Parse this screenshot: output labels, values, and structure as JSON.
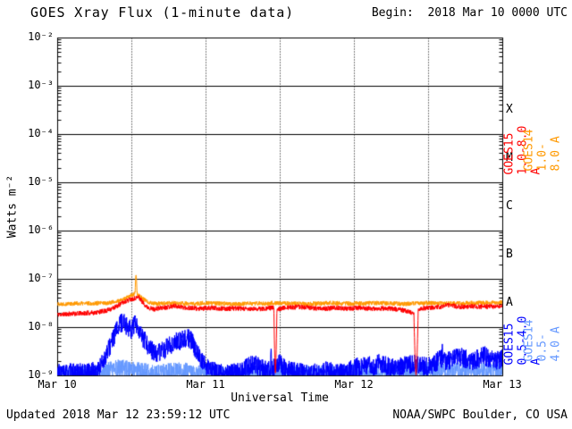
{
  "header": {
    "title": "GOES Xray Flux (1-minute data)",
    "begin": "Begin:  2018 Mar 10 0000 UTC"
  },
  "footer": {
    "updated": "Updated 2018 Mar 12 23:59:12 UTC",
    "credit": "NOAA/SWPC Boulder, CO USA"
  },
  "chart_data": {
    "type": "line",
    "title": "GOES Xray Flux (1-minute data)",
    "xlabel": "Universal Time",
    "ylabel": "Watts m⁻²",
    "x_range_hours": [
      0,
      72
    ],
    "ylim": [
      1e-09,
      0.01
    ],
    "y_scale": "log",
    "grid": {
      "h_lines_log": [
        -2,
        -3,
        -4,
        -5,
        -6,
        -7,
        -8,
        -9
      ],
      "v_dotted_hours": [
        12,
        24,
        36,
        48,
        60
      ]
    },
    "x_ticks": [
      {
        "label": "Mar 10",
        "hour": 0
      },
      {
        "label": "Mar 11",
        "hour": 24
      },
      {
        "label": "Mar 12",
        "hour": 48
      },
      {
        "label": "Mar 13",
        "hour": 72
      }
    ],
    "y_ticks": [
      {
        "label": "10⁻²",
        "log": -2
      },
      {
        "label": "10⁻³",
        "log": -3
      },
      {
        "label": "10⁻⁴",
        "log": -4
      },
      {
        "label": "10⁻⁵",
        "log": -5
      },
      {
        "label": "10⁻⁶",
        "log": -6
      },
      {
        "label": "10⁻⁷",
        "log": -7
      },
      {
        "label": "10⁻⁸",
        "log": -8
      },
      {
        "label": "10⁻⁹",
        "log": -9
      }
    ],
    "flare_classes": [
      {
        "label": "X",
        "log": -3.5
      },
      {
        "label": "M",
        "log": -4.5
      },
      {
        "label": "C",
        "log": -5.5
      },
      {
        "label": "B",
        "log": -6.5
      },
      {
        "label": "A",
        "log": -7.5
      }
    ],
    "legends": [
      {
        "text": "GOES15 1.0-8.0 A",
        "color": "#ff0000",
        "col": 0,
        "row": "top"
      },
      {
        "text": "GOES14 1.0-8.0 A",
        "color": "#ff9900",
        "col": 1,
        "row": "top"
      },
      {
        "text": "GOES15 0.5-4.0 A",
        "color": "#0000ff",
        "col": 0,
        "row": "bottom"
      },
      {
        "text": "GOES14 0.5-4.0 A",
        "color": "#6699ff",
        "col": 1,
        "row": "bottom"
      }
    ],
    "series": [
      {
        "name": "GOES14 0.5-4.0 A",
        "color": "#6699ff",
        "seed": 44,
        "noise_log": 0.18,
        "trend": [
          [
            0,
            -8.98
          ],
          [
            6,
            -8.98
          ],
          [
            8,
            -8.92
          ],
          [
            10,
            -8.84
          ],
          [
            12,
            -8.88
          ],
          [
            14,
            -8.92
          ],
          [
            16,
            -8.96
          ],
          [
            18,
            -8.92
          ],
          [
            20,
            -8.9
          ],
          [
            22,
            -8.94
          ],
          [
            24,
            -8.98
          ],
          [
            30,
            -8.98
          ],
          [
            36,
            -8.95
          ],
          [
            42,
            -8.97
          ],
          [
            48,
            -8.93
          ],
          [
            54,
            -8.95
          ],
          [
            60,
            -8.9
          ],
          [
            64,
            -8.88
          ],
          [
            68,
            -8.9
          ],
          [
            72,
            -8.88
          ]
        ]
      },
      {
        "name": "GOES15 0.5-4.0 A",
        "color": "#0000ff",
        "seed": 33,
        "noise_log": 0.2,
        "trend": [
          [
            0,
            -8.95
          ],
          [
            5,
            -8.95
          ],
          [
            6.5,
            -8.9
          ],
          [
            7.5,
            -8.7
          ],
          [
            8.5,
            -8.4
          ],
          [
            9.5,
            -8.1
          ],
          [
            10.3,
            -7.92
          ],
          [
            10.8,
            -7.88
          ],
          [
            11.3,
            -8.0
          ],
          [
            12,
            -8.05
          ],
          [
            12.6,
            -7.95
          ],
          [
            13.2,
            -8.1
          ],
          [
            14,
            -8.25
          ],
          [
            15,
            -8.45
          ],
          [
            16,
            -8.55
          ],
          [
            17,
            -8.5
          ],
          [
            18,
            -8.4
          ],
          [
            19,
            -8.32
          ],
          [
            20,
            -8.27
          ],
          [
            21,
            -8.22
          ],
          [
            21.6,
            -8.27
          ],
          [
            22.4,
            -8.45
          ],
          [
            23.2,
            -8.65
          ],
          [
            24,
            -8.8
          ],
          [
            25,
            -8.9
          ],
          [
            26,
            -8.95
          ],
          [
            28,
            -8.96
          ],
          [
            30,
            -8.9
          ],
          [
            31,
            -8.82
          ],
          [
            32,
            -8.76
          ],
          [
            33,
            -8.86
          ],
          [
            34,
            -8.9
          ],
          [
            35,
            -8.86
          ],
          [
            36,
            -8.76
          ],
          [
            37,
            -8.86
          ],
          [
            38,
            -8.92
          ],
          [
            40,
            -8.96
          ],
          [
            42,
            -8.95
          ],
          [
            44,
            -8.9
          ],
          [
            46,
            -8.95
          ],
          [
            48,
            -8.86
          ],
          [
            49,
            -8.8
          ],
          [
            50,
            -8.78
          ],
          [
            51,
            -8.82
          ],
          [
            52,
            -8.76
          ],
          [
            53,
            -8.8
          ],
          [
            54,
            -8.83
          ],
          [
            55,
            -8.86
          ],
          [
            56,
            -8.8
          ],
          [
            57,
            -8.78
          ],
          [
            58,
            -8.76
          ],
          [
            59,
            -8.8
          ],
          [
            60,
            -8.83
          ],
          [
            61,
            -8.76
          ],
          [
            62,
            -8.66
          ],
          [
            63,
            -8.7
          ],
          [
            64,
            -8.66
          ],
          [
            65,
            -8.6
          ],
          [
            66,
            -8.66
          ],
          [
            67,
            -8.7
          ],
          [
            68,
            -8.66
          ],
          [
            69,
            -8.6
          ],
          [
            70,
            -8.66
          ],
          [
            71,
            -8.7
          ],
          [
            72,
            -8.66
          ]
        ],
        "spikes": [
          {
            "t": 34.6,
            "width_h": 0.2,
            "peak_log": -8.45
          },
          {
            "t": 62.3,
            "width_h": 0.15,
            "peak_log": -8.35
          },
          {
            "t": 69.2,
            "width_h": 0.15,
            "peak_log": -8.4
          }
        ]
      },
      {
        "name": "GOES14 1.0-8.0 A",
        "color": "#ff9900",
        "seed": 22,
        "noise_log": 0.045,
        "trend": [
          [
            0,
            -7.52
          ],
          [
            4,
            -7.51
          ],
          [
            8,
            -7.5
          ],
          [
            10,
            -7.46
          ],
          [
            11,
            -7.41
          ],
          [
            12,
            -7.34
          ],
          [
            12.8,
            -7.3
          ],
          [
            13.6,
            -7.38
          ],
          [
            14.5,
            -7.47
          ],
          [
            16,
            -7.52
          ],
          [
            18,
            -7.5
          ],
          [
            20,
            -7.51
          ],
          [
            22,
            -7.52
          ],
          [
            24,
            -7.5
          ],
          [
            28,
            -7.52
          ],
          [
            32,
            -7.51
          ],
          [
            36,
            -7.5
          ],
          [
            40,
            -7.52
          ],
          [
            44,
            -7.5
          ],
          [
            48,
            -7.51
          ],
          [
            52,
            -7.5
          ],
          [
            56,
            -7.52
          ],
          [
            60,
            -7.5
          ],
          [
            64,
            -7.51
          ],
          [
            68,
            -7.5
          ],
          [
            72,
            -7.49
          ]
        ],
        "spikes": [
          {
            "t": 12.75,
            "width_h": 0.3,
            "peak_log": -6.92
          }
        ]
      },
      {
        "name": "GOES15 1.0-8.0 A",
        "color": "#ff0000",
        "seed": 11,
        "noise_log": 0.05,
        "trend": [
          [
            0,
            -7.74
          ],
          [
            3,
            -7.72
          ],
          [
            6,
            -7.7
          ],
          [
            8,
            -7.66
          ],
          [
            9.5,
            -7.58
          ],
          [
            10.5,
            -7.5
          ],
          [
            11.5,
            -7.44
          ],
          [
            12.5,
            -7.4
          ],
          [
            13.2,
            -7.38
          ],
          [
            13.8,
            -7.48
          ],
          [
            14.5,
            -7.58
          ],
          [
            15.5,
            -7.63
          ],
          [
            17,
            -7.6
          ],
          [
            19,
            -7.56
          ],
          [
            21,
            -7.6
          ],
          [
            23,
            -7.62
          ],
          [
            25,
            -7.6
          ],
          [
            27,
            -7.62
          ],
          [
            29,
            -7.61
          ],
          [
            31,
            -7.63
          ],
          [
            33,
            -7.62
          ],
          [
            34.8,
            -7.6
          ],
          [
            35.8,
            -7.62
          ],
          [
            37,
            -7.6
          ],
          [
            39,
            -7.58
          ],
          [
            41,
            -7.6
          ],
          [
            43,
            -7.62
          ],
          [
            45,
            -7.6
          ],
          [
            47,
            -7.62
          ],
          [
            49,
            -7.6
          ],
          [
            51,
            -7.62
          ],
          [
            53,
            -7.61
          ],
          [
            55,
            -7.63
          ],
          [
            56.5,
            -7.66
          ],
          [
            57.6,
            -7.72
          ],
          [
            58.6,
            -7.62
          ],
          [
            60,
            -7.6
          ],
          [
            62,
            -7.58
          ],
          [
            63.5,
            -7.54
          ],
          [
            65,
            -7.58
          ],
          [
            67,
            -7.57
          ],
          [
            69,
            -7.58
          ],
          [
            71,
            -7.57
          ],
          [
            72,
            -7.56
          ]
        ],
        "dips": [
          {
            "t": 35.3,
            "width_h": 0.5,
            "floor_log": -8.95
          },
          {
            "t": 58.05,
            "width_h": 0.7,
            "floor_log": -9.0
          }
        ]
      }
    ]
  }
}
